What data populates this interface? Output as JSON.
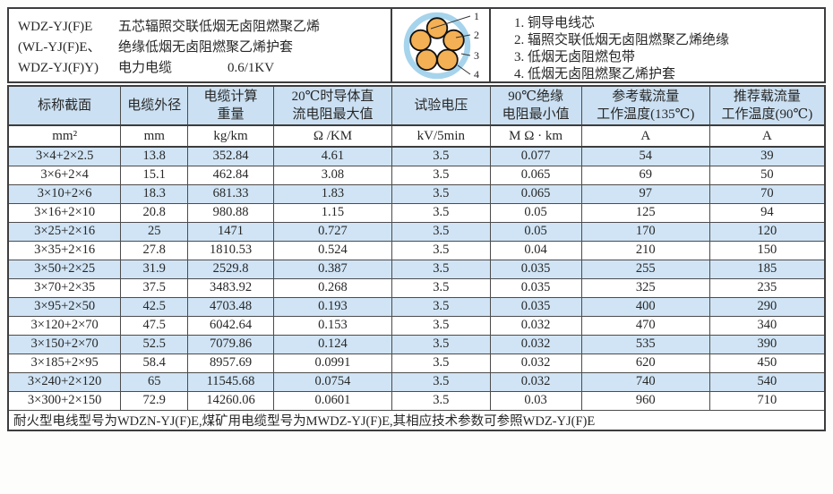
{
  "colors": {
    "header_blue": "#cbe0f2",
    "row_alt_blue": "#d0e4f5",
    "border_dark": "#3d3d3d",
    "sheath_blue": "#a6d4ec",
    "core_orange": "#f4b054",
    "text": "#272727"
  },
  "title_block": {
    "models": [
      "WDZ-YJ(F)E",
      "(WL-YJ(F)E、",
      "WDZ-YJ(F)Y)"
    ],
    "description_line1": "五芯辐照交联低烟无卤阻燃聚乙烯",
    "description_line2": "绝缘低烟无卤阻燃聚乙烯护套",
    "description_line3": "电力电缆",
    "voltage": "0.6/1KV"
  },
  "diagram": {
    "callouts": [
      "1",
      "2",
      "3",
      "4"
    ]
  },
  "legend": {
    "items": [
      "1. 铜导电线芯",
      "2. 辐照交联低烟无卤阻燃聚乙烯绝缘",
      "3. 低烟无卤阻燃包带",
      "4. 低烟无卤阻燃聚乙烯护套"
    ]
  },
  "table": {
    "headers": [
      "标称截面",
      "电缆外径",
      "电缆计算\n重量",
      "20℃时导体直\n流电阻最大值",
      "试验电压",
      "90℃绝缘\n电阻最小值",
      "参考载流量\n工作温度(135℃)",
      "推荐载流量\n工作温度(90℃)"
    ],
    "units": [
      "mm²",
      "mm",
      "kg/km",
      "Ω /KM",
      "kV/5min",
      "M Ω · km",
      "A",
      "A"
    ],
    "rows": [
      [
        "3×4+2×2.5",
        "13.8",
        "352.84",
        "4.61",
        "3.5",
        "0.077",
        "54",
        "39"
      ],
      [
        "3×6+2×4",
        "15.1",
        "462.84",
        "3.08",
        "3.5",
        "0.065",
        "69",
        "50"
      ],
      [
        "3×10+2×6",
        "18.3",
        "681.33",
        "1.83",
        "3.5",
        "0.065",
        "97",
        "70"
      ],
      [
        "3×16+2×10",
        "20.8",
        "980.88",
        "1.15",
        "3.5",
        "0.05",
        "125",
        "94"
      ],
      [
        "3×25+2×16",
        "25",
        "1471",
        "0.727",
        "3.5",
        "0.05",
        "170",
        "120"
      ],
      [
        "3×35+2×16",
        "27.8",
        "1810.53",
        "0.524",
        "3.5",
        "0.04",
        "210",
        "150"
      ],
      [
        "3×50+2×25",
        "31.9",
        "2529.8",
        "0.387",
        "3.5",
        "0.035",
        "255",
        "185"
      ],
      [
        "3×70+2×35",
        "37.5",
        "3483.92",
        "0.268",
        "3.5",
        "0.035",
        "325",
        "235"
      ],
      [
        "3×95+2×50",
        "42.5",
        "4703.48",
        "0.193",
        "3.5",
        "0.035",
        "400",
        "290"
      ],
      [
        "3×120+2×70",
        "47.5",
        "6042.64",
        "0.153",
        "3.5",
        "0.032",
        "470",
        "340"
      ],
      [
        "3×150+2×70",
        "52.5",
        "7079.86",
        "0.124",
        "3.5",
        "0.032",
        "535",
        "390"
      ],
      [
        "3×185+2×95",
        "58.4",
        "8957.69",
        "0.0991",
        "3.5",
        "0.032",
        "620",
        "450"
      ],
      [
        "3×240+2×120",
        "65",
        "11545.68",
        "0.0754",
        "3.5",
        "0.032",
        "740",
        "540"
      ],
      [
        "3×300+2×150",
        "72.9",
        "14260.06",
        "0.0601",
        "3.5",
        "0.03",
        "960",
        "710"
      ]
    ],
    "footnote": "耐火型电线型号为WDZN-YJ(F)E,煤矿用电缆型号为MWDZ-YJ(F)E,其相应技术参数可参照WDZ-YJ(F)E"
  }
}
